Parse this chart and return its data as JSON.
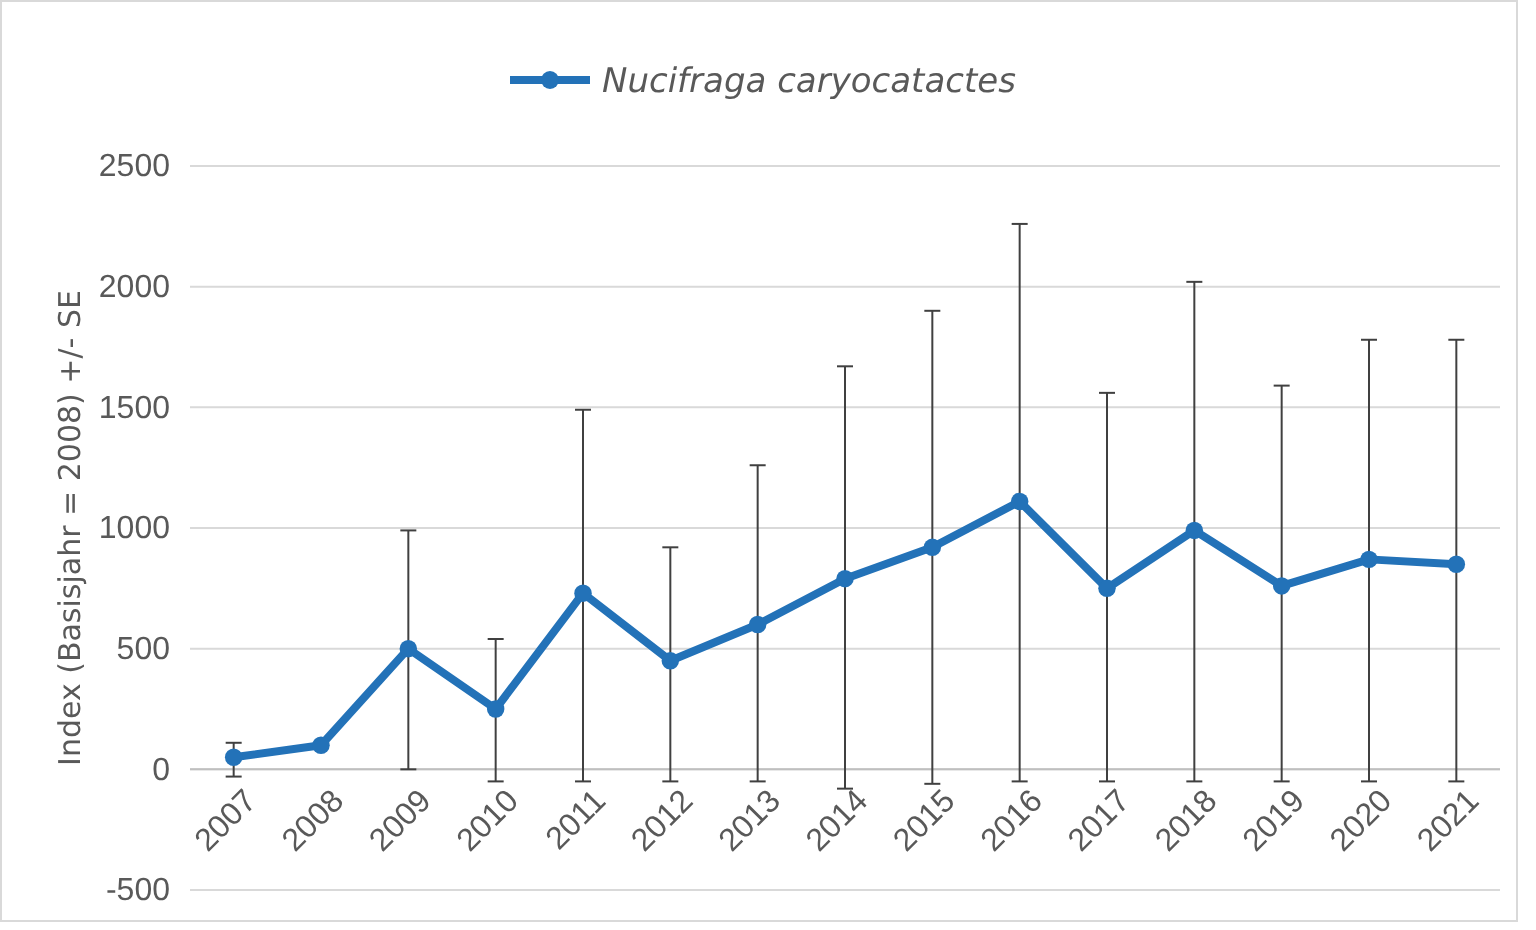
{
  "chart_data": {
    "type": "line",
    "ylabel": "Index (Basisjahr = 2008) +/- SE",
    "categories": [
      "2007",
      "2008",
      "2009",
      "2010",
      "2011",
      "2012",
      "2013",
      "2014",
      "2015",
      "2016",
      "2017",
      "2018",
      "2019",
      "2020",
      "2021"
    ],
    "series": [
      {
        "name": "Nucifraga caryocatactes",
        "color": "#2372b8",
        "values": [
          50,
          100,
          500,
          250,
          730,
          450,
          600,
          790,
          920,
          1110,
          750,
          990,
          760,
          870,
          850
        ],
        "errors": [
          [
            -30,
            110
          ],
          [
            null,
            null
          ],
          [
            0,
            990
          ],
          [
            -50,
            540
          ],
          [
            -50,
            1490
          ],
          [
            -50,
            920
          ],
          [
            -50,
            1260
          ],
          [
            -80,
            1670
          ],
          [
            -60,
            1900
          ],
          [
            -50,
            2260
          ],
          [
            -50,
            1560
          ],
          [
            -50,
            2020
          ],
          [
            -50,
            1590
          ],
          [
            -50,
            1780
          ],
          [
            -50,
            1780
          ]
        ]
      }
    ],
    "ylim": [
      -500,
      2500
    ],
    "yticks": [
      -500,
      0,
      500,
      1000,
      1500,
      2000,
      2500
    ],
    "grid": "y",
    "legend": "top",
    "marker": "circle",
    "line_style": "solid"
  }
}
